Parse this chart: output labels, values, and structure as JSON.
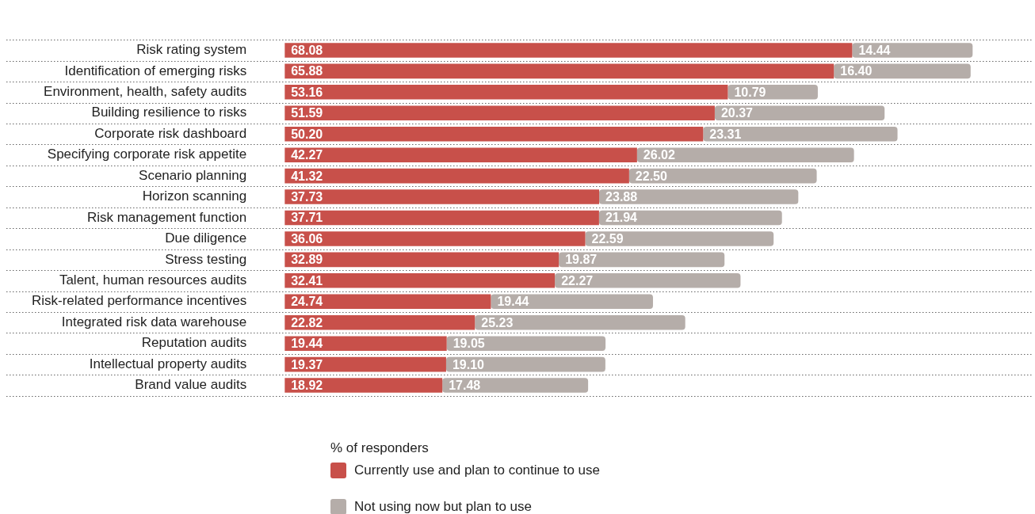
{
  "chart_data": {
    "type": "bar",
    "orientation": "horizontal",
    "stacked": true,
    "grid": "y",
    "legend": "bottom",
    "tick_labels": "y",
    "legend_title": "% of responders",
    "xlim": [
      0,
      90
    ],
    "categories": [
      "Risk rating system",
      "Identification of emerging risks",
      "Environment, health, safety audits",
      "Building resilience to risks",
      "Corporate risk dashboard",
      "Specifying corporate risk appetite",
      "Scenario planning",
      "Horizon scanning",
      "Risk management function",
      "Due diligence",
      "Stress testing",
      "Talent, human resources audits",
      "Risk-related performance incentives",
      "Integrated risk data warehouse",
      "Reputation audits",
      "Intellectual property audits",
      "Brand value audits"
    ],
    "series": [
      {
        "name": "Currently use and plan to continue to use",
        "color": "#c8504a",
        "values": [
          68.08,
          65.88,
          53.16,
          51.59,
          50.2,
          42.27,
          41.32,
          37.73,
          37.71,
          36.06,
          32.89,
          32.41,
          24.74,
          22.82,
          19.44,
          19.37,
          18.92
        ],
        "value_labels": [
          "68.08",
          "65.88",
          "53.16",
          "51.59",
          "50.20",
          "42.27",
          "41.32",
          "37.73",
          "37.71",
          "36.06",
          "32.89",
          "32.41",
          "24.74",
          "22.82",
          "19.44",
          "19.37",
          "18.92"
        ]
      },
      {
        "name": "Not using now but plan to use",
        "color": "#b5ada9",
        "values": [
          14.44,
          16.4,
          10.79,
          20.37,
          23.31,
          26.02,
          22.5,
          23.88,
          21.94,
          22.59,
          19.87,
          22.27,
          19.44,
          25.23,
          19.05,
          19.1,
          17.48
        ],
        "value_labels": [
          "14.44",
          "16.40",
          "10.79",
          "20.37",
          "23.31",
          "26.02",
          "22.50",
          "23.88",
          "21.94",
          "22.59",
          "19.87",
          "22.27",
          "19.44",
          "25.23",
          "19.05",
          "19.10",
          "17.48"
        ]
      }
    ]
  }
}
